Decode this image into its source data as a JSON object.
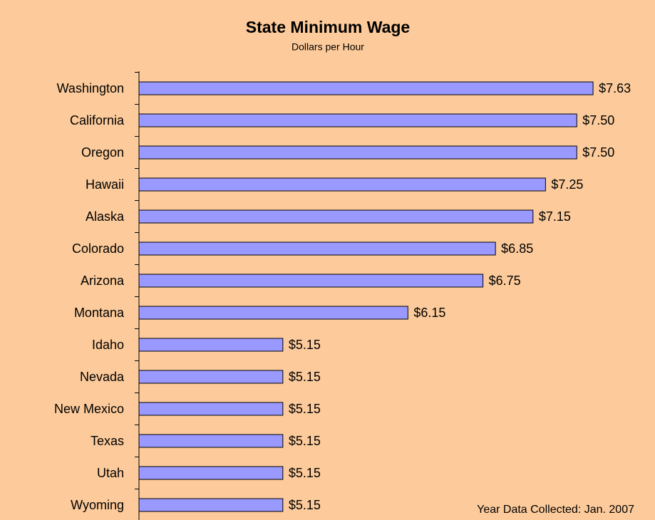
{
  "chart_data": {
    "type": "barh",
    "title": "State Minimum Wage",
    "subtitle": "Dollars per Hour",
    "annotation": "Year Data Collected: Jan. 2007",
    "categories": [
      "Washington",
      "California",
      "Oregon",
      "Hawaii",
      "Alaska",
      "Colorado",
      "Arizona",
      "Montana",
      "Idaho",
      "Nevada",
      "New Mexico",
      "Texas",
      "Utah",
      "Wyoming"
    ],
    "values": [
      7.63,
      7.5,
      7.5,
      7.25,
      7.15,
      6.85,
      6.75,
      6.15,
      5.15,
      5.15,
      5.15,
      5.15,
      5.15,
      5.15
    ],
    "value_labels": [
      "$7.63",
      "$7.50",
      "$7.50",
      "$7.25",
      "$7.15",
      "$6.85",
      "$6.75",
      "$6.15",
      "$5.15",
      "$5.15",
      "$5.15",
      "$5.15",
      "$5.15",
      "$5.15"
    ],
    "color": "#9999ff",
    "xlim": [
      4,
      8
    ]
  }
}
